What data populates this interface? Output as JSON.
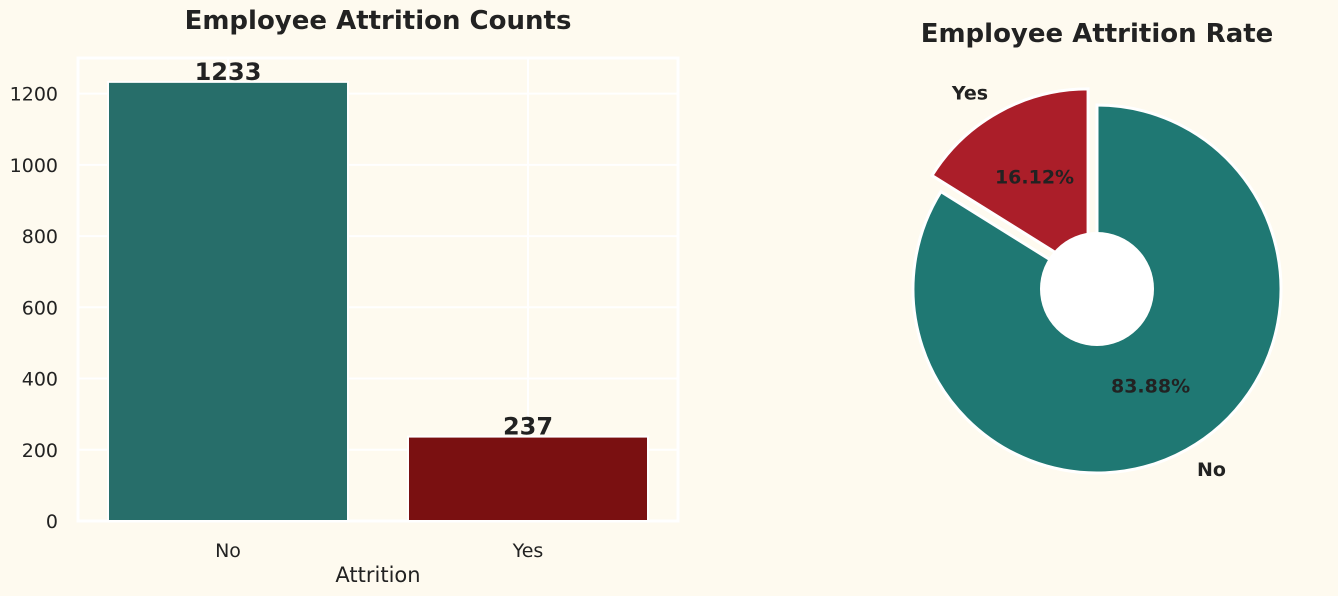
{
  "chart_data": [
    {
      "type": "bar",
      "title": "Employee Attrition Counts",
      "xlabel": "Attrition",
      "ylabel": "",
      "categories": [
        "No",
        "Yes"
      ],
      "values": [
        1233,
        237
      ],
      "value_labels": [
        "1233",
        "237"
      ],
      "ylim": [
        0,
        1300
      ],
      "yticks": [
        0,
        200,
        400,
        600,
        800,
        1000,
        1200
      ],
      "colors": [
        "#276e6a",
        "#7a1011"
      ],
      "grid": true
    },
    {
      "type": "pie",
      "title": "Employee Attrition Rate",
      "labels": [
        "No",
        "Yes"
      ],
      "values": [
        83.88,
        16.12
      ],
      "pct_labels": [
        "83.88%",
        "16.12%"
      ],
      "colors": [
        "#1f7873",
        "#ab1e29"
      ],
      "explode": [
        0,
        0.1
      ],
      "donut": true
    }
  ]
}
